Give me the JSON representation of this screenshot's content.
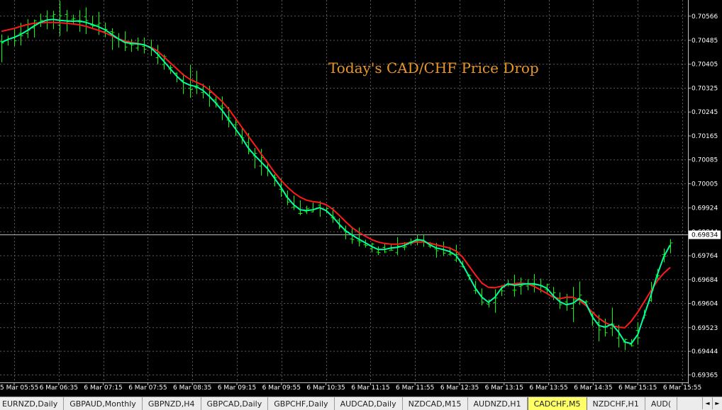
{
  "chart_data": {
    "type": "candlestick",
    "title": "Today's CAD/CHF Price Drop",
    "y_ticks": [
      "0.70566",
      "0.70485",
      "0.70405",
      "0.70325",
      "0.70245",
      "0.70165",
      "0.70085",
      "0.70005",
      "0.69924",
      "0.69844",
      "0.69764",
      "0.69684",
      "0.69604",
      "0.69523",
      "0.69444",
      "0.69365"
    ],
    "ylim": [
      0.6934,
      0.7062
    ],
    "current_price": "0.69834",
    "x_ticks": [
      "5 Mar 05:55",
      "6 Mar 06:35",
      "6 Mar 07:15",
      "6 Mar 07:55",
      "6 Mar 08:35",
      "6 Mar 09:15",
      "6 Mar 09:55",
      "6 Mar 10:35",
      "6 Mar 11:15",
      "6 Mar 11:55",
      "6 Mar 12:35",
      "6 Mar 13:15",
      "6 Mar 13:55",
      "6 Mar 14:35",
      "6 Mar 15:15",
      "6 Mar 15:55"
    ],
    "grid": true,
    "colors": {
      "background": "#000000",
      "grid": "#5a5a5a",
      "bars": "#00ff00",
      "ma_fast": "#00ffa0",
      "ma_slow": "#ff1a1a",
      "title": "#e8962a",
      "axis_text": "#ffffff"
    },
    "moving_average_fast": [
      0.70478,
      0.70488,
      0.70495,
      0.70505,
      0.70518,
      0.70533,
      0.70545,
      0.70553,
      0.70555,
      0.70552,
      0.7055,
      0.70549,
      0.7055,
      0.70545,
      0.70538,
      0.7053,
      0.7052,
      0.70505,
      0.7049,
      0.70478,
      0.70475,
      0.70473,
      0.7047,
      0.7046,
      0.7044,
      0.70415,
      0.7039,
      0.70365,
      0.70345,
      0.70335,
      0.7033,
      0.70318,
      0.70298,
      0.70275,
      0.7025,
      0.7022,
      0.7019,
      0.7016,
      0.70125,
      0.701,
      0.70078,
      0.70055,
      0.70025,
      0.69995,
      0.6996,
      0.69935,
      0.69918,
      0.69915,
      0.69918,
      0.69925,
      0.69915,
      0.69895,
      0.6987,
      0.69848,
      0.69833,
      0.6982,
      0.69808,
      0.69795,
      0.69785,
      0.69785,
      0.6979,
      0.69792,
      0.69798,
      0.69808,
      0.69818,
      0.69815,
      0.698,
      0.6979,
      0.69785,
      0.69778,
      0.69765,
      0.69735,
      0.69695,
      0.69655,
      0.69625,
      0.69608,
      0.69625,
      0.69655,
      0.6967,
      0.69665,
      0.69668,
      0.6967,
      0.6967,
      0.69665,
      0.69655,
      0.6963,
      0.6961,
      0.696,
      0.69605,
      0.6962,
      0.69605,
      0.6956,
      0.6953,
      0.69525,
      0.69535,
      0.6951,
      0.69475,
      0.6947,
      0.695,
      0.69565,
      0.6963,
      0.697,
      0.6976,
      0.698
    ],
    "moving_average_slow": [
      0.70515,
      0.7052,
      0.70525,
      0.70532,
      0.70538,
      0.70542,
      0.70544,
      0.70545,
      0.70545,
      0.70544,
      0.70542,
      0.7054,
      0.70537,
      0.70532,
      0.70525,
      0.70518,
      0.7051,
      0.705,
      0.7049,
      0.70483,
      0.70478,
      0.70475,
      0.7047,
      0.70462,
      0.7045,
      0.7043,
      0.7041,
      0.7039,
      0.7037,
      0.70355,
      0.70345,
      0.70335,
      0.7032,
      0.703,
      0.7028,
      0.70255,
      0.70225,
      0.70195,
      0.70165,
      0.70135,
      0.70105,
      0.70075,
      0.70045,
      0.70018,
      0.69995,
      0.69975,
      0.6996,
      0.6995,
      0.69945,
      0.69942,
      0.69935,
      0.6992,
      0.699,
      0.69878,
      0.69858,
      0.69843,
      0.6983,
      0.69818,
      0.6981,
      0.69805,
      0.69803,
      0.69803,
      0.69805,
      0.69808,
      0.6981,
      0.6981,
      0.69806,
      0.698,
      0.69795,
      0.6979,
      0.6978,
      0.6976,
      0.6973,
      0.697,
      0.69672,
      0.69658,
      0.69657,
      0.69662,
      0.69668,
      0.6967,
      0.69672,
      0.6967,
      0.69662,
      0.6965,
      0.69638,
      0.69625,
      0.6962,
      0.69625,
      0.69625,
      0.69615,
      0.69598,
      0.69575,
      0.69555,
      0.6954,
      0.6953,
      0.69525,
      0.69523,
      0.69545,
      0.69575,
      0.6961,
      0.69645,
      0.6968,
      0.69705,
      0.69725
    ]
  },
  "tabs": [
    "EURNZD,Daily",
    "GBPAUD,Monthly",
    "GBPNZD,H4",
    "GBPCAD,Daily",
    "GBPCHF,Daily",
    "AUDCAD,Daily",
    "NZDCAD,M15",
    "AUDNZD,H1",
    "CADCHF,M5",
    "NZDCHF,H1",
    "AUD("
  ],
  "active_tab": "CADCHF,M5",
  "scroll_left_icon": "◄",
  "scroll_right_icon": "►"
}
